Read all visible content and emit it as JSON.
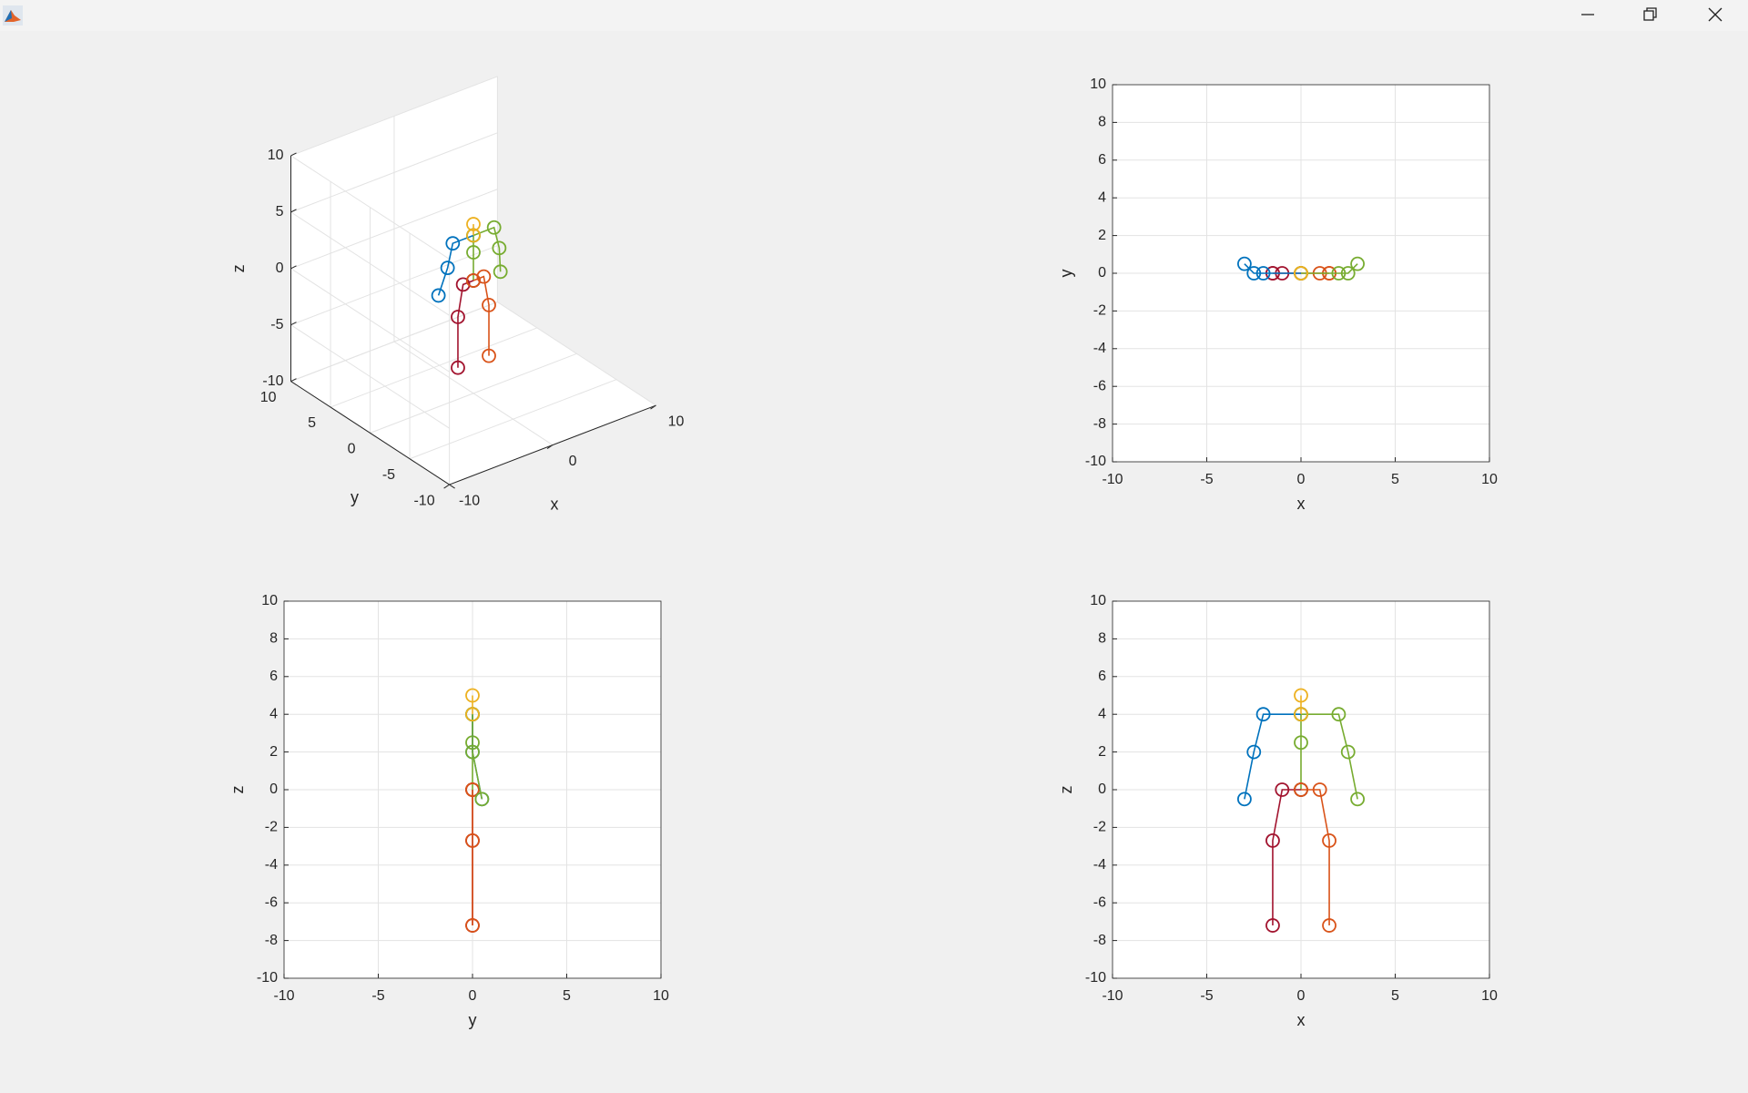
{
  "chart_data": [
    {
      "type": "line3",
      "xlabel": "x",
      "ylabel": "y",
      "zlabel": "z",
      "xlim": [
        -10,
        10
      ],
      "ylim": [
        -10,
        10
      ],
      "zlim": [
        -10,
        10
      ],
      "xticks": [
        -10,
        0,
        10
      ],
      "yticks": [
        -10,
        -5,
        0,
        5,
        10
      ],
      "zticks": [
        -10,
        -5,
        0,
        5,
        10
      ],
      "grid": true,
      "series": [
        {
          "color": "#77AC30",
          "x": [
            0,
            0,
            0
          ],
          "y": [
            0,
            0,
            0
          ],
          "z": [
            0,
            2.5,
            4
          ]
        },
        {
          "color": "#A2142F",
          "x": [
            0,
            -1,
            -1.5,
            -1.5
          ],
          "y": [
            0,
            0,
            0,
            0
          ],
          "z": [
            0,
            0,
            -2.7,
            -7.2
          ]
        },
        {
          "color": "#D95319",
          "x": [
            0,
            1,
            1.5,
            1.5
          ],
          "y": [
            0,
            0,
            0,
            0
          ],
          "z": [
            0,
            0,
            -2.7,
            -7.2
          ]
        },
        {
          "color": "#0072BD",
          "x": [
            0,
            -2,
            -2.5,
            -3
          ],
          "y": [
            0,
            0,
            0,
            0.5
          ],
          "z": [
            4,
            4,
            2,
            -0.5
          ]
        },
        {
          "color": "#77AC30",
          "x": [
            0,
            2,
            2.5,
            3
          ],
          "y": [
            0,
            0,
            0,
            0.5
          ],
          "z": [
            4,
            4,
            2,
            -0.5
          ]
        },
        {
          "color": "#EDB120",
          "x": [
            0,
            0
          ],
          "y": [
            0,
            0
          ],
          "z": [
            4,
            5
          ]
        }
      ]
    },
    {
      "type": "line",
      "xlabel": "x",
      "ylabel": "y",
      "xlim": [
        -10,
        10
      ],
      "ylim": [
        -10,
        10
      ],
      "xticks": [
        -10,
        -5,
        0,
        5,
        10
      ],
      "yticks": [
        -10,
        -8,
        -6,
        -4,
        -2,
        0,
        2,
        4,
        6,
        8,
        10
      ],
      "grid": true,
      "series": [
        {
          "color": "#77AC30",
          "x": [
            0,
            0,
            0
          ],
          "y": [
            0,
            0,
            0
          ]
        },
        {
          "color": "#A2142F",
          "x": [
            0,
            -1,
            -1.5,
            -1.5
          ],
          "y": [
            0,
            0,
            0,
            0
          ]
        },
        {
          "color": "#D95319",
          "x": [
            0,
            1,
            1.5,
            1.5
          ],
          "y": [
            0,
            0,
            0,
            0
          ]
        },
        {
          "color": "#0072BD",
          "x": [
            0,
            -2,
            -2.5,
            -3
          ],
          "y": [
            0,
            0,
            0,
            0.5
          ]
        },
        {
          "color": "#77AC30",
          "x": [
            0,
            2,
            2.5,
            3
          ],
          "y": [
            0,
            0,
            0,
            0.5
          ]
        },
        {
          "color": "#EDB120",
          "x": [
            0,
            0
          ],
          "y": [
            0,
            0
          ]
        }
      ]
    },
    {
      "type": "line",
      "xlabel": "y",
      "ylabel": "z",
      "xlim": [
        -10,
        10
      ],
      "ylim": [
        -10,
        10
      ],
      "xticks": [
        -10,
        -5,
        0,
        5,
        10
      ],
      "yticks": [
        -10,
        -8,
        -6,
        -4,
        -2,
        0,
        2,
        4,
        6,
        8,
        10
      ],
      "grid": true,
      "series": [
        {
          "color": "#77AC30",
          "x": [
            0,
            0,
            0
          ],
          "y": [
            0,
            2.5,
            4
          ]
        },
        {
          "color": "#A2142F",
          "x": [
            0,
            0,
            0,
            0
          ],
          "y": [
            0,
            0,
            -2.7,
            -7.2
          ]
        },
        {
          "color": "#D95319",
          "x": [
            0,
            0,
            0,
            0
          ],
          "y": [
            0,
            0,
            -2.7,
            -7.2
          ]
        },
        {
          "color": "#0072BD",
          "x": [
            0,
            0,
            0,
            0.5
          ],
          "y": [
            4,
            4,
            2,
            -0.5
          ]
        },
        {
          "color": "#77AC30",
          "x": [
            0,
            0,
            0,
            0.5
          ],
          "y": [
            4,
            4,
            2,
            -0.5
          ]
        },
        {
          "color": "#EDB120",
          "x": [
            0,
            0
          ],
          "y": [
            4,
            5
          ]
        }
      ]
    },
    {
      "type": "line",
      "xlabel": "x",
      "ylabel": "z",
      "xlim": [
        -10,
        10
      ],
      "ylim": [
        -10,
        10
      ],
      "xticks": [
        -10,
        -5,
        0,
        5,
        10
      ],
      "yticks": [
        -10,
        -8,
        -6,
        -4,
        -2,
        0,
        2,
        4,
        6,
        8,
        10
      ],
      "grid": true,
      "series": [
        {
          "color": "#77AC30",
          "x": [
            0,
            0,
            0
          ],
          "y": [
            0,
            2.5,
            4
          ]
        },
        {
          "color": "#A2142F",
          "x": [
            0,
            -1,
            -1.5,
            -1.5
          ],
          "y": [
            0,
            0,
            -2.7,
            -7.2
          ]
        },
        {
          "color": "#D95319",
          "x": [
            0,
            1,
            1.5,
            1.5
          ],
          "y": [
            0,
            0,
            -2.7,
            -7.2
          ]
        },
        {
          "color": "#0072BD",
          "x": [
            0,
            -2,
            -2.5,
            -3
          ],
          "y": [
            4,
            4,
            2,
            -0.5
          ]
        },
        {
          "color": "#77AC30",
          "x": [
            0,
            2,
            2.5,
            3
          ],
          "y": [
            4,
            4,
            2,
            -0.5
          ]
        },
        {
          "color": "#EDB120",
          "x": [
            0,
            0
          ],
          "y": [
            4,
            5
          ]
        }
      ]
    }
  ]
}
